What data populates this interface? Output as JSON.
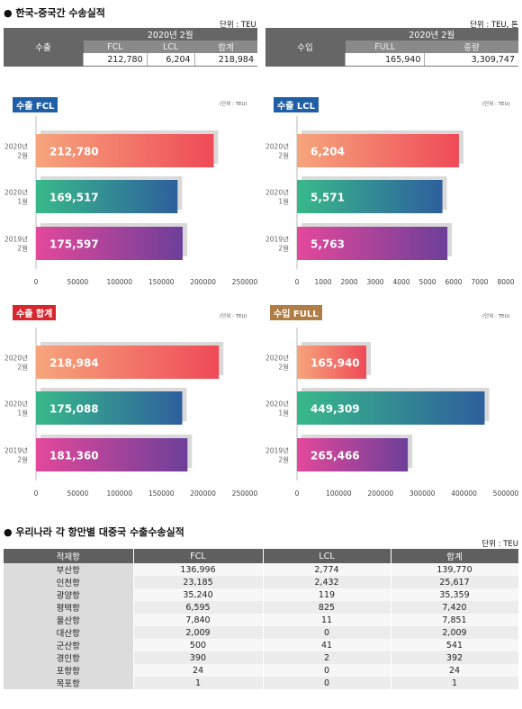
{
  "header": {
    "title": "● 한국-중국간 수송실적",
    "left_unit": "단위 : TEU",
    "right_unit": "단위 : TEU, 톤"
  },
  "export_table": {
    "row_label": "수출",
    "period": "2020년 2월",
    "columns": [
      "FCL",
      "LCL",
      "합계"
    ],
    "values": [
      "212,780",
      "6,204",
      "218,984"
    ]
  },
  "import_table": {
    "row_label": "수입",
    "period": "2020년 2월",
    "columns": [
      "FULL",
      "중량"
    ],
    "values": [
      "165,940",
      "3,309,747"
    ]
  },
  "colors": {
    "row1": [
      "#f6a57c",
      "#ef4a57"
    ],
    "row2": [
      "#38b98a",
      "#2e5f9d"
    ],
    "row3": [
      "#e3489b",
      "#6d3f99"
    ]
  },
  "chart_data": [
    {
      "type": "bar",
      "title": "수출 FCL",
      "unit": "(단위 : TEU)",
      "categories": [
        [
          "2020년",
          "2월"
        ],
        [
          "2020년",
          "1월"
        ],
        [
          "2019년",
          "2월"
        ]
      ],
      "values": [
        212780,
        169517,
        175597
      ],
      "value_labels": [
        "212,780",
        "169,517",
        "175,597"
      ],
      "xlim": [
        0,
        250000
      ],
      "xticks": [
        0,
        50000,
        100000,
        150000,
        200000,
        250000
      ]
    },
    {
      "type": "bar",
      "title": "수출 LCL",
      "unit": "(단위 : TEU)",
      "categories": [
        [
          "2020년",
          "2월"
        ],
        [
          "2020년",
          "1월"
        ],
        [
          "2019년",
          "2월"
        ]
      ],
      "values": [
        6204,
        5571,
        5763
      ],
      "value_labels": [
        "6,204",
        "5,571",
        "5,763"
      ],
      "xlim": [
        0,
        8000
      ],
      "xticks": [
        0,
        1000,
        2000,
        3000,
        4000,
        5000,
        6000,
        7000,
        8000
      ]
    },
    {
      "type": "bar",
      "title": "수출 합계",
      "unit": "(단위 : TEU)",
      "categories": [
        [
          "2020년",
          "2월"
        ],
        [
          "2020년",
          "1월"
        ],
        [
          "2019년",
          "2월"
        ]
      ],
      "values": [
        218984,
        175088,
        181360
      ],
      "value_labels": [
        "218,984",
        "175,088",
        "181,360"
      ],
      "xlim": [
        0,
        250000
      ],
      "xticks": [
        0,
        50000,
        100000,
        150000,
        200000,
        250000
      ]
    },
    {
      "type": "bar",
      "title": "수입 FULL",
      "unit": "(단위 : TEU)",
      "categories": [
        [
          "2020년",
          "2월"
        ],
        [
          "2020년",
          "1월"
        ],
        [
          "2019년",
          "2월"
        ]
      ],
      "values": [
        165940,
        449309,
        265466
      ],
      "value_labels": [
        "165,940",
        "449,309",
        "265,466"
      ],
      "xlim": [
        0,
        500000
      ],
      "xticks": [
        0,
        100000,
        200000,
        300000,
        400000,
        500000
      ]
    },
    {
      "type": "table",
      "title": "● 우리나라 각 항만별 대중국 수출수송실적",
      "unit": "단위 : TEU",
      "columns": [
        "적재항",
        "FCL",
        "LCL",
        "합계"
      ],
      "rows": [
        [
          "부산항",
          "136,996",
          "2,774",
          "139,770"
        ],
        [
          "인천항",
          "23,185",
          "2,432",
          "25,617"
        ],
        [
          "광양항",
          "35,240",
          "119",
          "35,359"
        ],
        [
          "평택항",
          "6,595",
          "825",
          "7,420"
        ],
        [
          "울산항",
          "7,840",
          "11",
          "7,851"
        ],
        [
          "대산항",
          "2,009",
          "0",
          "2,009"
        ],
        [
          "군산항",
          "500",
          "41",
          "541"
        ],
        [
          "경인항",
          "390",
          "2",
          "392"
        ],
        [
          "포항항",
          "24",
          "0",
          "24"
        ],
        [
          "목포항",
          "1",
          "0",
          "1"
        ]
      ]
    }
  ]
}
